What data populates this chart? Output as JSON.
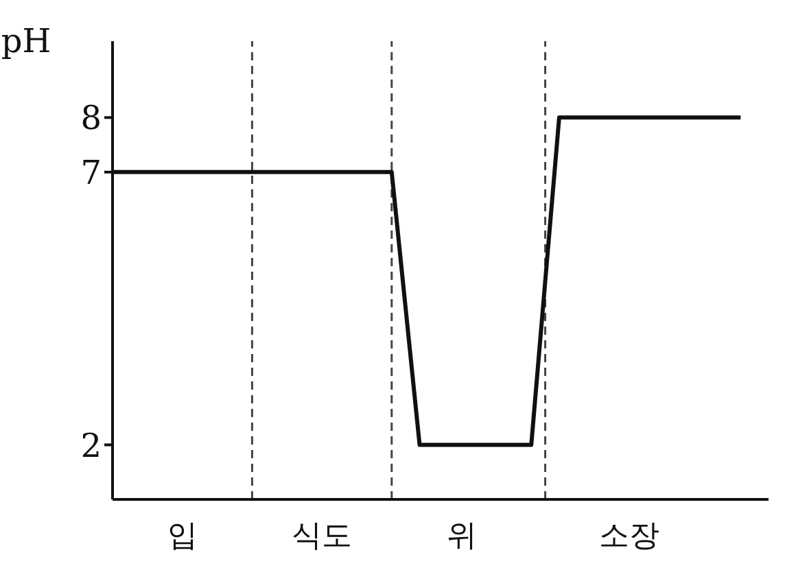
{
  "chart_data": {
    "type": "line",
    "ylabel": "pH",
    "categories": [
      null,
      null,
      null,
      null,
      null,
      "입",
      null,
      null,
      null,
      null,
      null,
      null,
      null,
      null,
      null,
      "식도",
      null,
      null,
      null,
      null,
      null,
      null,
      null,
      null,
      null,
      "위",
      null,
      null,
      null,
      null,
      null,
      null,
      null,
      null,
      null,
      null,
      null,
      "소장",
      null,
      null,
      null,
      null,
      null,
      null,
      null,
      null,
      null,
      null
    ],
    "series": [
      {
        "color": "#111111",
        "values": [
          7,
          7,
          7,
          7,
          7,
          7,
          7,
          7,
          7,
          7,
          7,
          7,
          7,
          7,
          7,
          7,
          7,
          7,
          7,
          7,
          7,
          4.5,
          2,
          2,
          2,
          2,
          2,
          2,
          2,
          2,
          2,
          5,
          8,
          8,
          8,
          8,
          8,
          8,
          8,
          8,
          8,
          8,
          8,
          8,
          8,
          8,
          null,
          null
        ]
      }
    ],
    "ylim": [
      1,
      9.4
    ],
    "yticks": [
      2,
      7,
      8
    ],
    "grid": false,
    "legend": false,
    "marker": "none",
    "line_style": "solid"
  }
}
